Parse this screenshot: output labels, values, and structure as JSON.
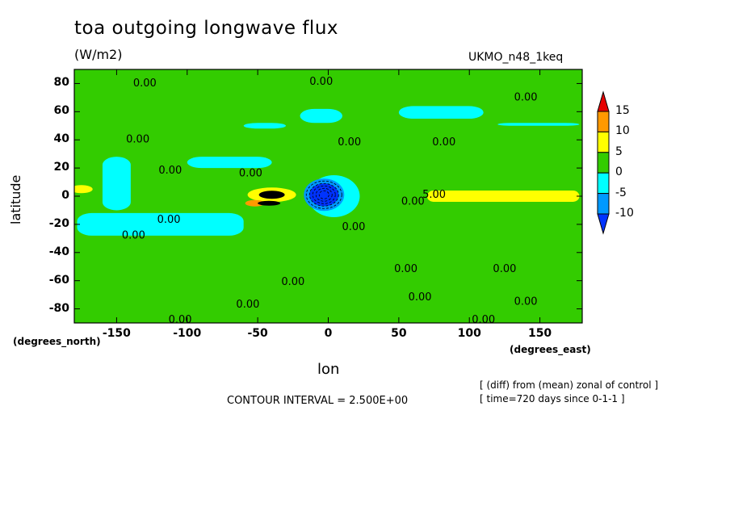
{
  "header": {
    "title": "toa outgoing longwave flux",
    "units": "(W/m2)",
    "model": "UKMO_n48_1keq"
  },
  "footer": {
    "contour_interval": "CONTOUR INTERVAL = 2.500E+00",
    "note_line1": "[ (diff) from (mean) zonal of control ]",
    "note_line2": "[ time=720 days since 0-1-1 ]"
  },
  "chart_data": {
    "type": "heatmap",
    "title": "toa outgoing longwave flux",
    "subtitle": "(W/m2)",
    "xlabel": "lon",
    "ylabel": "latitude",
    "x_units": "(degrees_east)",
    "y_units": "(degrees_north)",
    "xlim": [
      -180,
      180
    ],
    "ylim": [
      -90,
      90
    ],
    "x_ticks": [
      -150,
      -100,
      -50,
      0,
      50,
      100,
      150
    ],
    "y_ticks": [
      80,
      60,
      40,
      20,
      0,
      -20,
      -40,
      -60,
      -80
    ],
    "colorbar": {
      "levels": [
        15,
        10,
        5,
        0,
        -5,
        -10
      ],
      "colors": [
        "#e60000",
        "#ff9900",
        "#ffff00",
        "#33cc00",
        "#00ffff",
        "#0099ff",
        "#0033ff"
      ]
    },
    "contour_labels": [
      {
        "text": "0.00",
        "lon": -130,
        "lat": 80
      },
      {
        "text": "0.00",
        "lon": -5,
        "lat": 81
      },
      {
        "text": "0.00",
        "lon": 140,
        "lat": 70
      },
      {
        "text": "0.00",
        "lon": -135,
        "lat": 40
      },
      {
        "text": "0.00",
        "lon": 15,
        "lat": 38
      },
      {
        "text": "0.00",
        "lon": 82,
        "lat": 38
      },
      {
        "text": "0.00",
        "lon": -112,
        "lat": 18
      },
      {
        "text": "0.00",
        "lon": -55,
        "lat": 16
      },
      {
        "text": "0.00",
        "lon": 60,
        "lat": -4
      },
      {
        "text": "5.00",
        "lon": 75,
        "lat": 1
      },
      {
        "text": "0.00",
        "lon": -113,
        "lat": -17
      },
      {
        "text": "0.00",
        "lon": 18,
        "lat": -22
      },
      {
        "text": "0.00",
        "lon": -138,
        "lat": -28
      },
      {
        "text": "0.00",
        "lon": 55,
        "lat": -52
      },
      {
        "text": "0.00",
        "lon": 125,
        "lat": -52
      },
      {
        "text": "0.00",
        "lon": -25,
        "lat": -61
      },
      {
        "text": "0.00",
        "lon": 65,
        "lat": -72
      },
      {
        "text": "0.00",
        "lon": 140,
        "lat": -75
      },
      {
        "text": "0.00",
        "lon": -57,
        "lat": -77
      },
      {
        "text": "0.00",
        "lon": -105,
        "lat": -88
      },
      {
        "text": "0.00",
        "lon": 110,
        "lat": -88
      }
    ],
    "grid": false
  }
}
